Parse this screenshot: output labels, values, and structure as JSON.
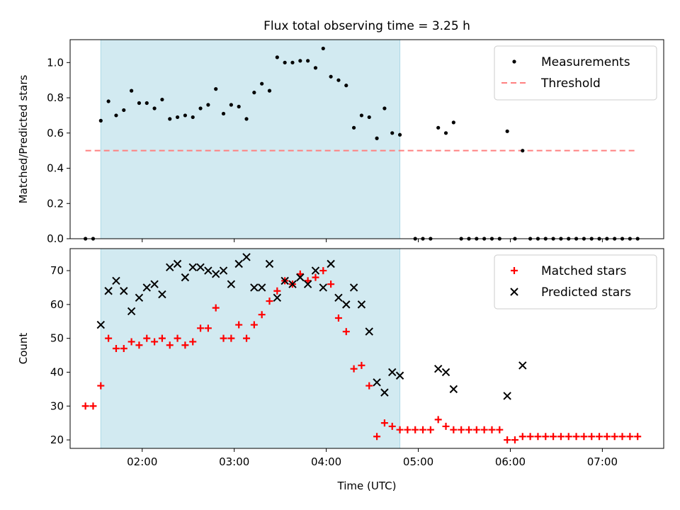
{
  "chart_data": {
    "title": "Flux total observing time = 3.25 h",
    "shaded_interval": [
      "01:33",
      "04:48"
    ],
    "colors": {
      "shade": "#add8e6",
      "measurements": "#000000",
      "threshold": "#ff8080",
      "matched": "#ff0000",
      "predicted": "#000000"
    },
    "xaxis": {
      "label": "Time (UTC)",
      "range": [
        "01:13",
        "07:40"
      ],
      "ticks": [
        "02:00",
        "03:00",
        "04:00",
        "05:00",
        "06:00",
        "07:00"
      ]
    },
    "top": {
      "type": "scatter",
      "ylabel": "Matched/Predicted stars",
      "ylim": [
        0,
        1.13
      ],
      "yticks": [
        "0.0",
        "0.2",
        "0.4",
        "0.6",
        "0.8",
        "1.0"
      ],
      "legend": {
        "position": "top-right",
        "entries": [
          "Measurements",
          "Threshold"
        ]
      },
      "threshold": {
        "name": "Threshold",
        "value": 0.5,
        "x_range": [
          "01:23",
          "07:23"
        ],
        "style": "dashed"
      },
      "series": [
        {
          "name": "Measurements",
          "marker": "dot",
          "points": [
            [
              "01:23",
              0.0
            ],
            [
              "01:28",
              0.0
            ],
            [
              "01:33",
              0.67
            ],
            [
              "01:38",
              0.78
            ],
            [
              "01:43",
              0.7
            ],
            [
              "01:48",
              0.73
            ],
            [
              "01:53",
              0.84
            ],
            [
              "01:58",
              0.77
            ],
            [
              "02:03",
              0.77
            ],
            [
              "02:08",
              0.74
            ],
            [
              "02:13",
              0.79
            ],
            [
              "02:18",
              0.68
            ],
            [
              "02:23",
              0.69
            ],
            [
              "02:28",
              0.7
            ],
            [
              "02:33",
              0.69
            ],
            [
              "02:38",
              0.74
            ],
            [
              "02:43",
              0.76
            ],
            [
              "02:48",
              0.85
            ],
            [
              "02:53",
              0.71
            ],
            [
              "02:58",
              0.76
            ],
            [
              "03:03",
              0.75
            ],
            [
              "03:08",
              0.68
            ],
            [
              "03:13",
              0.83
            ],
            [
              "03:18",
              0.88
            ],
            [
              "03:23",
              0.84
            ],
            [
              "03:28",
              1.03
            ],
            [
              "03:33",
              1.0
            ],
            [
              "03:38",
              1.0
            ],
            [
              "03:43",
              1.01
            ],
            [
              "03:48",
              1.01
            ],
            [
              "03:53",
              0.97
            ],
            [
              "03:58",
              1.08
            ],
            [
              "04:03",
              0.92
            ],
            [
              "04:08",
              0.9
            ],
            [
              "04:13",
              0.87
            ],
            [
              "04:18",
              0.63
            ],
            [
              "04:23",
              0.7
            ],
            [
              "04:28",
              0.69
            ],
            [
              "04:33",
              0.57
            ],
            [
              "04:38",
              0.74
            ],
            [
              "04:43",
              0.6
            ],
            [
              "04:48",
              0.59
            ],
            [
              "04:58",
              0.0
            ],
            [
              "05:03",
              0.0
            ],
            [
              "05:08",
              0.0
            ],
            [
              "05:13",
              0.63
            ],
            [
              "05:18",
              0.6
            ],
            [
              "05:23",
              0.66
            ],
            [
              "05:28",
              0.0
            ],
            [
              "05:33",
              0.0
            ],
            [
              "05:38",
              0.0
            ],
            [
              "05:43",
              0.0
            ],
            [
              "05:48",
              0.0
            ],
            [
              "05:53",
              0.0
            ],
            [
              "05:58",
              0.61
            ],
            [
              "06:03",
              0.0
            ],
            [
              "06:08",
              0.5
            ],
            [
              "06:13",
              0.0
            ],
            [
              "06:18",
              0.0
            ],
            [
              "06:23",
              0.0
            ],
            [
              "06:28",
              0.0
            ],
            [
              "06:33",
              0.0
            ],
            [
              "06:38",
              0.0
            ],
            [
              "06:43",
              0.0
            ],
            [
              "06:48",
              0.0
            ],
            [
              "06:53",
              0.0
            ],
            [
              "06:58",
              0.0
            ],
            [
              "07:03",
              0.0
            ],
            [
              "07:08",
              0.0
            ],
            [
              "07:13",
              0.0
            ],
            [
              "07:18",
              0.0
            ],
            [
              "07:23",
              0.0
            ]
          ]
        }
      ]
    },
    "bottom": {
      "type": "scatter",
      "ylabel": "Count",
      "ylim": [
        17.5,
        76.5
      ],
      "yticks": [
        "20",
        "30",
        "40",
        "50",
        "60",
        "70"
      ],
      "legend": {
        "position": "top-right",
        "entries": [
          "Matched stars",
          "Predicted stars"
        ]
      },
      "series": [
        {
          "name": "Matched stars",
          "marker": "plus",
          "points": [
            [
              "01:23",
              30
            ],
            [
              "01:28",
              30
            ],
            [
              "01:33",
              36
            ],
            [
              "01:38",
              50
            ],
            [
              "01:43",
              47
            ],
            [
              "01:48",
              47
            ],
            [
              "01:53",
              49
            ],
            [
              "01:58",
              48
            ],
            [
              "02:03",
              50
            ],
            [
              "02:08",
              49
            ],
            [
              "02:13",
              50
            ],
            [
              "02:18",
              48
            ],
            [
              "02:23",
              50
            ],
            [
              "02:28",
              48
            ],
            [
              "02:33",
              49
            ],
            [
              "02:38",
              53
            ],
            [
              "02:43",
              53
            ],
            [
              "02:48",
              59
            ],
            [
              "02:53",
              50
            ],
            [
              "02:58",
              50
            ],
            [
              "03:03",
              54
            ],
            [
              "03:08",
              50
            ],
            [
              "03:13",
              54
            ],
            [
              "03:18",
              57
            ],
            [
              "03:23",
              61
            ],
            [
              "03:28",
              64
            ],
            [
              "03:33",
              67
            ],
            [
              "03:38",
              66
            ],
            [
              "03:43",
              69
            ],
            [
              "03:48",
              67
            ],
            [
              "03:53",
              68
            ],
            [
              "03:58",
              70
            ],
            [
              "04:03",
              66
            ],
            [
              "04:08",
              56
            ],
            [
              "04:13",
              52
            ],
            [
              "04:18",
              41
            ],
            [
              "04:23",
              42
            ],
            [
              "04:28",
              36
            ],
            [
              "04:33",
              21
            ],
            [
              "04:38",
              25
            ],
            [
              "04:43",
              24
            ],
            [
              "04:48",
              23
            ],
            [
              "04:53",
              23
            ],
            [
              "04:58",
              23
            ],
            [
              "05:03",
              23
            ],
            [
              "05:08",
              23
            ],
            [
              "05:13",
              26
            ],
            [
              "05:18",
              24
            ],
            [
              "05:23",
              23
            ],
            [
              "05:28",
              23
            ],
            [
              "05:33",
              23
            ],
            [
              "05:38",
              23
            ],
            [
              "05:43",
              23
            ],
            [
              "05:48",
              23
            ],
            [
              "05:53",
              23
            ],
            [
              "05:58",
              20
            ],
            [
              "06:03",
              20
            ],
            [
              "06:08",
              21
            ],
            [
              "06:13",
              21
            ],
            [
              "06:18",
              21
            ],
            [
              "06:23",
              21
            ],
            [
              "06:28",
              21
            ],
            [
              "06:33",
              21
            ],
            [
              "06:38",
              21
            ],
            [
              "06:43",
              21
            ],
            [
              "06:48",
              21
            ],
            [
              "06:53",
              21
            ],
            [
              "06:58",
              21
            ],
            [
              "07:03",
              21
            ],
            [
              "07:08",
              21
            ],
            [
              "07:13",
              21
            ],
            [
              "07:18",
              21
            ],
            [
              "07:23",
              21
            ]
          ]
        },
        {
          "name": "Predicted stars",
          "marker": "x",
          "points": [
            [
              "01:33",
              54
            ],
            [
              "01:38",
              64
            ],
            [
              "01:43",
              67
            ],
            [
              "01:48",
              64
            ],
            [
              "01:53",
              58
            ],
            [
              "01:58",
              62
            ],
            [
              "02:03",
              65
            ],
            [
              "02:08",
              66
            ],
            [
              "02:13",
              63
            ],
            [
              "02:18",
              71
            ],
            [
              "02:23",
              72
            ],
            [
              "02:28",
              68
            ],
            [
              "02:33",
              71
            ],
            [
              "02:38",
              71
            ],
            [
              "02:43",
              70
            ],
            [
              "02:48",
              69
            ],
            [
              "02:53",
              70
            ],
            [
              "02:58",
              66
            ],
            [
              "03:03",
              72
            ],
            [
              "03:08",
              74
            ],
            [
              "03:13",
              65
            ],
            [
              "03:18",
              65
            ],
            [
              "03:23",
              72
            ],
            [
              "03:28",
              62
            ],
            [
              "03:33",
              67
            ],
            [
              "03:38",
              66
            ],
            [
              "03:43",
              68
            ],
            [
              "03:48",
              66
            ],
            [
              "03:53",
              70
            ],
            [
              "03:58",
              65
            ],
            [
              "04:03",
              72
            ],
            [
              "04:08",
              62
            ],
            [
              "04:13",
              60
            ],
            [
              "04:18",
              65
            ],
            [
              "04:23",
              60
            ],
            [
              "04:28",
              52
            ],
            [
              "04:33",
              37
            ],
            [
              "04:38",
              34
            ],
            [
              "04:43",
              40
            ],
            [
              "04:48",
              39
            ],
            [
              "05:13",
              41
            ],
            [
              "05:18",
              40
            ],
            [
              "05:23",
              35
            ],
            [
              "05:58",
              33
            ],
            [
              "06:08",
              42
            ]
          ]
        }
      ]
    }
  }
}
